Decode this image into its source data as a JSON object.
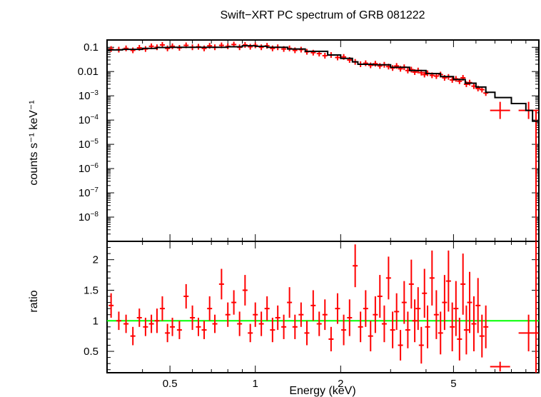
{
  "title": "Swift−XRT PC spectrum of GRB 081222",
  "xlabel": "Energy (keV)",
  "colors": {
    "data": "#ff0000",
    "model": "#000000",
    "unity": "#00ff00",
    "frame": "#000000"
  },
  "chart_data": [
    {
      "type": "line",
      "panel": "spectrum",
      "ylabel": "counts s⁻¹ keV⁻¹",
      "xscale": "log",
      "yscale": "log",
      "xlim": [
        0.3,
        10
      ],
      "ylim": [
        1e-09,
        0.2
      ],
      "xticks": [
        {
          "value": 0.5,
          "label": "0.5"
        },
        {
          "value": 1,
          "label": "1"
        },
        {
          "value": 2,
          "label": "2"
        },
        {
          "value": 5,
          "label": "5"
        }
      ],
      "yticks": [
        {
          "value": 0.1,
          "base": "0.1",
          "exp": ""
        },
        {
          "value": 0.01,
          "base": "0.01",
          "exp": ""
        },
        {
          "value": 0.001,
          "base": "10",
          "exp": "−3"
        },
        {
          "value": 0.0001,
          "base": "10",
          "exp": "−4"
        },
        {
          "value": 1e-05,
          "base": "10",
          "exp": "−5"
        },
        {
          "value": 1e-06,
          "base": "10",
          "exp": "−6"
        },
        {
          "value": 1e-07,
          "base": "10",
          "exp": "−7"
        },
        {
          "value": 1e-08,
          "base": "10",
          "exp": "−8"
        }
      ],
      "model": {
        "x": [
          0.3,
          0.34,
          0.4,
          0.45,
          0.5,
          0.6,
          0.7,
          0.8,
          0.9,
          1.0,
          1.1,
          1.3,
          1.5,
          1.8,
          2.0,
          2.2,
          2.3,
          2.6,
          3.0,
          3.5,
          4.0,
          4.5,
          5.0,
          5.5,
          6.0,
          6.5,
          7.0,
          8.0,
          9.0,
          9.5,
          10.0
        ],
        "y": [
          0.078,
          0.082,
          0.09,
          0.098,
          0.1,
          0.1,
          0.1,
          0.105,
          0.115,
          0.11,
          0.1,
          0.085,
          0.068,
          0.048,
          0.035,
          0.025,
          0.02,
          0.019,
          0.015,
          0.011,
          0.0083,
          0.0062,
          0.0047,
          0.0033,
          0.0023,
          0.0014,
          0.00085,
          0.00048,
          0.00025,
          9e-05,
          2e-05
        ]
      },
      "points": [
        {
          "x": 0.31,
          "y": 0.085
        },
        {
          "x": 0.33,
          "y": 0.08
        },
        {
          "x": 0.35,
          "y": 0.09
        },
        {
          "x": 0.37,
          "y": 0.075
        },
        {
          "x": 0.39,
          "y": 0.095
        },
        {
          "x": 0.41,
          "y": 0.085
        },
        {
          "x": 0.43,
          "y": 0.11
        },
        {
          "x": 0.45,
          "y": 0.1
        },
        {
          "x": 0.47,
          "y": 0.125
        },
        {
          "x": 0.49,
          "y": 0.09
        },
        {
          "x": 0.51,
          "y": 0.11
        },
        {
          "x": 0.54,
          "y": 0.095
        },
        {
          "x": 0.57,
          "y": 0.12
        },
        {
          "x": 0.6,
          "y": 0.1
        },
        {
          "x": 0.63,
          "y": 0.105
        },
        {
          "x": 0.66,
          "y": 0.09
        },
        {
          "x": 0.69,
          "y": 0.115
        },
        {
          "x": 0.72,
          "y": 0.1
        },
        {
          "x": 0.76,
          "y": 0.12
        },
        {
          "x": 0.8,
          "y": 0.11
        },
        {
          "x": 0.84,
          "y": 0.13
        },
        {
          "x": 0.88,
          "y": 0.1
        },
        {
          "x": 0.92,
          "y": 0.125
        },
        {
          "x": 0.96,
          "y": 0.105
        },
        {
          "x": 1.0,
          "y": 0.12
        },
        {
          "x": 1.05,
          "y": 0.1
        },
        {
          "x": 1.1,
          "y": 0.115
        },
        {
          "x": 1.15,
          "y": 0.09
        },
        {
          "x": 1.2,
          "y": 0.1
        },
        {
          "x": 1.26,
          "y": 0.085
        },
        {
          "x": 1.32,
          "y": 0.09
        },
        {
          "x": 1.38,
          "y": 0.075
        },
        {
          "x": 1.45,
          "y": 0.08
        },
        {
          "x": 1.52,
          "y": 0.065
        },
        {
          "x": 1.6,
          "y": 0.06
        },
        {
          "x": 1.68,
          "y": 0.055
        },
        {
          "x": 1.76,
          "y": 0.045
        },
        {
          "x": 1.85,
          "y": 0.048
        },
        {
          "x": 1.95,
          "y": 0.038
        },
        {
          "x": 2.05,
          "y": 0.04
        },
        {
          "x": 2.15,
          "y": 0.03
        },
        {
          "x": 2.25,
          "y": 0.025
        },
        {
          "x": 2.35,
          "y": 0.02
        },
        {
          "x": 2.45,
          "y": 0.022
        },
        {
          "x": 2.55,
          "y": 0.018
        },
        {
          "x": 2.65,
          "y": 0.021
        },
        {
          "x": 2.75,
          "y": 0.017
        },
        {
          "x": 2.85,
          "y": 0.019
        },
        {
          "x": 2.95,
          "y": 0.016
        },
        {
          "x": 3.05,
          "y": 0.014
        },
        {
          "x": 3.15,
          "y": 0.017
        },
        {
          "x": 3.25,
          "y": 0.013
        },
        {
          "x": 3.35,
          "y": 0.015
        },
        {
          "x": 3.45,
          "y": 0.011
        },
        {
          "x": 3.55,
          "y": 0.012
        },
        {
          "x": 3.65,
          "y": 0.0095
        },
        {
          "x": 3.75,
          "y": 0.011
        },
        {
          "x": 3.85,
          "y": 0.009
        },
        {
          "x": 3.95,
          "y": 0.0075
        },
        {
          "x": 4.05,
          "y": 0.0085
        },
        {
          "x": 4.2,
          "y": 0.007
        },
        {
          "x": 4.35,
          "y": 0.0065
        },
        {
          "x": 4.5,
          "y": 0.0075
        },
        {
          "x": 4.65,
          "y": 0.0055
        },
        {
          "x": 4.8,
          "y": 0.006
        },
        {
          "x": 4.95,
          "y": 0.0045
        },
        {
          "x": 5.1,
          "y": 0.005
        },
        {
          "x": 5.25,
          "y": 0.004
        },
        {
          "x": 5.4,
          "y": 0.0055
        },
        {
          "x": 5.55,
          "y": 0.003
        },
        {
          "x": 5.7,
          "y": 0.0035
        },
        {
          "x": 5.9,
          "y": 0.0025
        },
        {
          "x": 6.1,
          "y": 0.002
        },
        {
          "x": 6.3,
          "y": 0.0018
        },
        {
          "x": 6.5,
          "y": 0.0013
        },
        {
          "x": 7.3,
          "y": 0.00025
        },
        {
          "x": 9.2,
          "y": 0.00025
        }
      ]
    },
    {
      "type": "scatter",
      "panel": "ratio",
      "ylabel": "ratio",
      "xscale": "log",
      "yscale": "linear",
      "xlim": [
        0.3,
        10
      ],
      "ylim": [
        0.15,
        2.3
      ],
      "reference_line": 1,
      "yticks": [
        {
          "value": 0.5,
          "label": "0.5"
        },
        {
          "value": 1,
          "label": "1"
        },
        {
          "value": 1.5,
          "label": "1.5"
        },
        {
          "value": 2,
          "label": "2"
        }
      ],
      "points": [
        {
          "x": 0.31,
          "y": 1.25,
          "dy": 0.2
        },
        {
          "x": 0.33,
          "y": 1.0,
          "dy": 0.15
        },
        {
          "x": 0.35,
          "y": 0.95,
          "dy": 0.15
        },
        {
          "x": 0.37,
          "y": 0.75,
          "dy": 0.15
        },
        {
          "x": 0.39,
          "y": 1.05,
          "dy": 0.15
        },
        {
          "x": 0.41,
          "y": 0.9,
          "dy": 0.15
        },
        {
          "x": 0.43,
          "y": 0.95,
          "dy": 0.15
        },
        {
          "x": 0.45,
          "y": 1.0,
          "dy": 0.2
        },
        {
          "x": 0.47,
          "y": 1.2,
          "dy": 0.2
        },
        {
          "x": 0.49,
          "y": 0.8,
          "dy": 0.15
        },
        {
          "x": 0.51,
          "y": 0.9,
          "dy": 0.15
        },
        {
          "x": 0.54,
          "y": 0.85,
          "dy": 0.15
        },
        {
          "x": 0.57,
          "y": 1.4,
          "dy": 0.2
        },
        {
          "x": 0.6,
          "y": 1.05,
          "dy": 0.2
        },
        {
          "x": 0.63,
          "y": 0.9,
          "dy": 0.15
        },
        {
          "x": 0.66,
          "y": 0.85,
          "dy": 0.15
        },
        {
          "x": 0.69,
          "y": 1.2,
          "dy": 0.2
        },
        {
          "x": 0.72,
          "y": 0.95,
          "dy": 0.15
        },
        {
          "x": 0.76,
          "y": 1.6,
          "dy": 0.25
        },
        {
          "x": 0.8,
          "y": 1.1,
          "dy": 0.2
        },
        {
          "x": 0.84,
          "y": 1.3,
          "dy": 0.2
        },
        {
          "x": 0.88,
          "y": 0.95,
          "dy": 0.2
        },
        {
          "x": 0.92,
          "y": 1.5,
          "dy": 0.25
        },
        {
          "x": 0.96,
          "y": 0.8,
          "dy": 0.15
        },
        {
          "x": 1.0,
          "y": 1.1,
          "dy": 0.2
        },
        {
          "x": 1.05,
          "y": 0.95,
          "dy": 0.2
        },
        {
          "x": 1.1,
          "y": 1.2,
          "dy": 0.2
        },
        {
          "x": 1.15,
          "y": 0.85,
          "dy": 0.2
        },
        {
          "x": 1.2,
          "y": 1.05,
          "dy": 0.2
        },
        {
          "x": 1.26,
          "y": 0.9,
          "dy": 0.2
        },
        {
          "x": 1.32,
          "y": 1.3,
          "dy": 0.25
        },
        {
          "x": 1.38,
          "y": 0.9,
          "dy": 0.2
        },
        {
          "x": 1.45,
          "y": 1.1,
          "dy": 0.2
        },
        {
          "x": 1.52,
          "y": 0.8,
          "dy": 0.2
        },
        {
          "x": 1.6,
          "y": 1.25,
          "dy": 0.25
        },
        {
          "x": 1.68,
          "y": 0.95,
          "dy": 0.2
        },
        {
          "x": 1.76,
          "y": 1.1,
          "dy": 0.25
        },
        {
          "x": 1.85,
          "y": 0.7,
          "dy": 0.2
        },
        {
          "x": 1.95,
          "y": 1.2,
          "dy": 0.25
        },
        {
          "x": 2.05,
          "y": 0.85,
          "dy": 0.25
        },
        {
          "x": 2.15,
          "y": 1.05,
          "dy": 0.3
        },
        {
          "x": 2.25,
          "y": 1.9,
          "dy": 0.35
        },
        {
          "x": 2.35,
          "y": 0.9,
          "dy": 0.25
        },
        {
          "x": 2.45,
          "y": 1.2,
          "dy": 0.3
        },
        {
          "x": 2.55,
          "y": 0.75,
          "dy": 0.25
        },
        {
          "x": 2.65,
          "y": 1.1,
          "dy": 0.3
        },
        {
          "x": 2.75,
          "y": 1.4,
          "dy": 0.35
        },
        {
          "x": 2.85,
          "y": 0.95,
          "dy": 0.3
        },
        {
          "x": 2.95,
          "y": 1.7,
          "dy": 0.35
        },
        {
          "x": 3.05,
          "y": 0.85,
          "dy": 0.3
        },
        {
          "x": 3.15,
          "y": 1.15,
          "dy": 0.3
        },
        {
          "x": 3.25,
          "y": 0.6,
          "dy": 0.25
        },
        {
          "x": 3.35,
          "y": 1.3,
          "dy": 0.35
        },
        {
          "x": 3.45,
          "y": 0.85,
          "dy": 0.3
        },
        {
          "x": 3.55,
          "y": 1.6,
          "dy": 0.4
        },
        {
          "x": 3.65,
          "y": 1.0,
          "dy": 0.35
        },
        {
          "x": 3.75,
          "y": 1.2,
          "dy": 0.35
        },
        {
          "x": 3.85,
          "y": 0.6,
          "dy": 0.3
        },
        {
          "x": 3.95,
          "y": 1.45,
          "dy": 0.4
        },
        {
          "x": 4.05,
          "y": 0.9,
          "dy": 0.35
        },
        {
          "x": 4.2,
          "y": 1.7,
          "dy": 0.45
        },
        {
          "x": 4.35,
          "y": 1.1,
          "dy": 0.4
        },
        {
          "x": 4.5,
          "y": 0.8,
          "dy": 0.35
        },
        {
          "x": 4.65,
          "y": 1.3,
          "dy": 0.45
        },
        {
          "x": 4.8,
          "y": 1.65,
          "dy": 0.5
        },
        {
          "x": 4.95,
          "y": 0.9,
          "dy": 0.4
        },
        {
          "x": 5.1,
          "y": 1.2,
          "dy": 0.45
        },
        {
          "x": 5.25,
          "y": 0.7,
          "dy": 0.35
        },
        {
          "x": 5.4,
          "y": 1.6,
          "dy": 0.5
        },
        {
          "x": 5.55,
          "y": 0.85,
          "dy": 0.4
        },
        {
          "x": 5.7,
          "y": 1.3,
          "dy": 0.5
        },
        {
          "x": 5.9,
          "y": 0.95,
          "dy": 0.45
        },
        {
          "x": 6.1,
          "y": 1.25,
          "dy": 0.45
        },
        {
          "x": 6.3,
          "y": 0.75,
          "dy": 0.35
        },
        {
          "x": 6.5,
          "y": 0.9,
          "dy": 0.35
        },
        {
          "x": 7.3,
          "y": 0.25,
          "dy": 0.08
        },
        {
          "x": 9.2,
          "y": 0.8,
          "dy": 0.3
        }
      ]
    }
  ]
}
